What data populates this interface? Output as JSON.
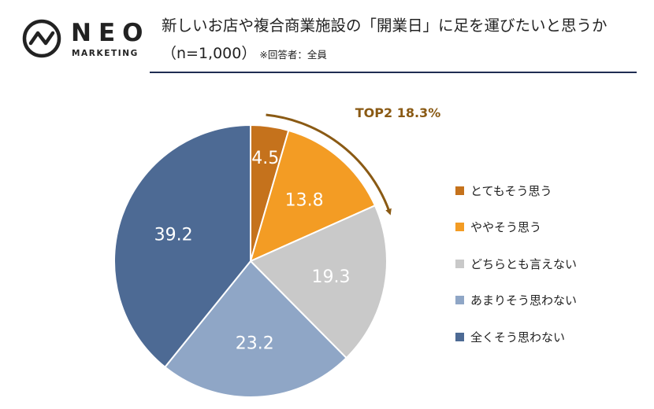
{
  "logo": {
    "brand": "NEO",
    "sub": "MARKETING"
  },
  "header": {
    "title": "新しいお店や複合商業施設の「開業日」に足を運びたいと思うか",
    "sample": "（n=1,000）",
    "note": "※回答者：全員"
  },
  "chart_data": {
    "type": "pie",
    "title": "新しいお店や複合商業施設の「開業日」に足を運びたいと思うか",
    "categories": [
      "とてもそう思う",
      "ややそう思う",
      "どちらとも言えない",
      "あまりそう思わない",
      "全くそう思わない"
    ],
    "values": [
      4.5,
      13.8,
      19.3,
      23.2,
      39.2
    ],
    "colors": [
      "#c5721c",
      "#f39c24",
      "#c9c9c9",
      "#8fa6c6",
      "#4d6a94"
    ],
    "label_colors": [
      "#ffffff",
      "#ffffff",
      "#ffffff",
      "#ffffff",
      "#ffffff"
    ],
    "annotation": "TOP2 18.3%",
    "annotation_color": "#8a5a14",
    "legend_position": "right",
    "unit": "%"
  }
}
